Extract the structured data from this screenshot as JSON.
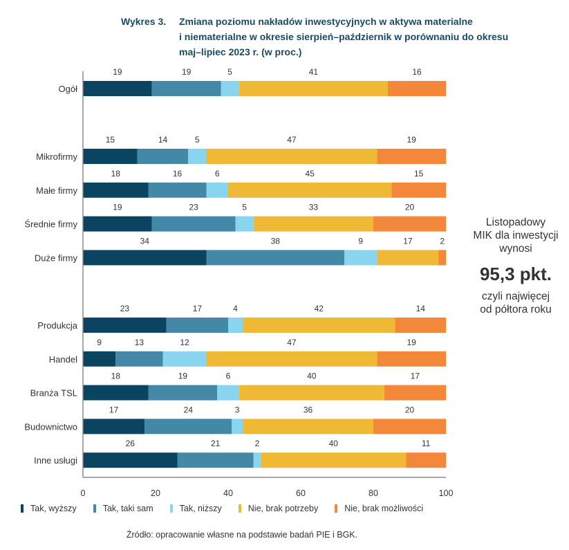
{
  "title": {
    "number": "Wykres 3.",
    "text": "Zmiana poziomu nakładów inwestycyjnych w aktywa materialne i niematerialne w okresie sierpień–październik w porównaniu do okresu maj–lipiec 2023 r. (w proc.)",
    "lines": [
      "Zmiana poziomu nakładów inwestycyjnych w aktywa materialne",
      "i niematerialne w okresie sierpień–październik w porównaniu do okresu",
      "maj–lipiec 2023 r. (w proc.)"
    ]
  },
  "side_note": {
    "lines_top": [
      "Listopadowy",
      "MIK dla inwestycji",
      "wynosi"
    ],
    "highlight": "95,3 pkt.",
    "lines_bottom": [
      "czyli najwięcej",
      "od półtora roku"
    ]
  },
  "source": "Źródło: opracowanie własne na podstawie badań PIE i BGK.",
  "chart_data": {
    "type": "bar",
    "orientation": "horizontal",
    "stacked": true,
    "title": "Wykres 3. Zmiana poziomu nakładów inwestycyjnych w aktywa materialne i niematerialne w okresie sierpień–październik w porównaniu do okresu maj–lipiec 2023 r. (w proc.)",
    "xlabel": "",
    "ylabel": "",
    "xlim": [
      0,
      100
    ],
    "xticks": [
      0,
      20,
      40,
      60,
      80,
      100
    ],
    "grid": false,
    "legend_position": "bottom",
    "categories": [
      "Ogół",
      "Mikrofirmy",
      "Małe firmy",
      "Średnie firmy",
      "Duże firmy",
      "Produkcja",
      "Handel",
      "Branża TSL",
      "Budownictwo",
      "Inne usługi"
    ],
    "groups": [
      [
        "Ogół"
      ],
      [
        "Mikrofirmy",
        "Małe firmy",
        "Średnie firmy",
        "Duże firmy"
      ],
      [
        "Produkcja",
        "Handel",
        "Branża TSL",
        "Budownictwo",
        "Inne usługi"
      ]
    ],
    "series": [
      {
        "name": "Tak, wyższy",
        "color": "#0b4460",
        "values": [
          19,
          15,
          18,
          19,
          34,
          23,
          9,
          18,
          17,
          26
        ]
      },
      {
        "name": "Tak, taki sam",
        "color": "#4389a7",
        "values": [
          19,
          14,
          16,
          23,
          38,
          17,
          13,
          19,
          24,
          21
        ]
      },
      {
        "name": "Tak, niższy",
        "color": "#89d4ee",
        "values": [
          5,
          5,
          6,
          5,
          9,
          4,
          12,
          6,
          3,
          2
        ]
      },
      {
        "name": "Nie, brak potrzeby",
        "color": "#f0b935",
        "values": [
          41,
          47,
          45,
          33,
          17,
          42,
          47,
          40,
          36,
          40
        ]
      },
      {
        "name": "Nie, brak możliwości",
        "color": "#f3873a",
        "values": [
          16,
          19,
          15,
          20,
          2,
          14,
          19,
          17,
          20,
          11
        ]
      }
    ]
  }
}
